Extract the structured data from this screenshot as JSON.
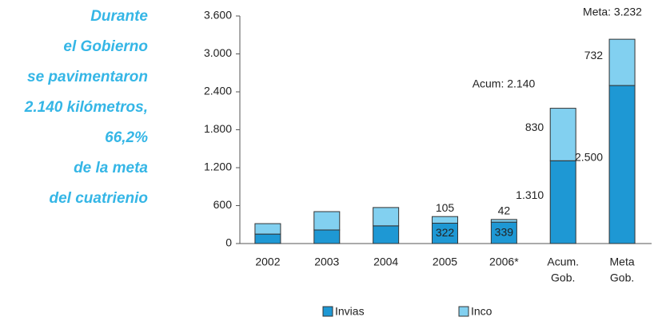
{
  "side_text": [
    "Durante",
    "el Gobierno",
    "se pavimentaron",
    "2.140 kilómetros,",
    "66,2%",
    "de la meta",
    "del cuatrienio"
  ],
  "chart_data": {
    "type": "stacked-bar",
    "categories": [
      [
        "2002"
      ],
      [
        "2003"
      ],
      [
        "2004"
      ],
      [
        "2005"
      ],
      [
        "2006*"
      ],
      [
        "Acum.",
        "Gob."
      ],
      [
        "Meta",
        "Gob."
      ]
    ],
    "series": [
      {
        "name": "Invias",
        "color": "#1e98d4",
        "values": [
          150,
          215,
          280,
          322,
          339,
          1310,
          2500
        ],
        "value_labels": [
          null,
          null,
          null,
          "322",
          "339",
          "1.310",
          "2.500"
        ]
      },
      {
        "name": "Inco",
        "color": "#82d0f0",
        "values": [
          165,
          290,
          290,
          105,
          42,
          830,
          732
        ],
        "value_labels": [
          null,
          null,
          null,
          "105",
          "42",
          "830",
          "732"
        ]
      }
    ],
    "annotations": [
      "Acum: 2.140",
      "Meta: 3.232"
    ],
    "ylim": [
      0,
      3600
    ],
    "yticks": [
      0,
      600,
      {
        "value": 1200,
        "label": "1.200"
      },
      {
        "value": 1800,
        "label": "1.800"
      },
      {
        "value": 2400,
        "label": "2.400"
      },
      {
        "value": 3000,
        "label": "3.000"
      },
      {
        "value": 3600,
        "label": "3.600"
      }
    ],
    "grid": false,
    "legend": "bottom"
  }
}
